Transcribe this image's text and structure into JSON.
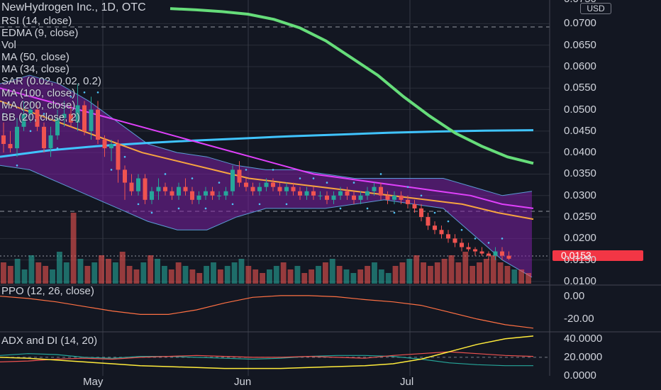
{
  "header": {
    "title": "NewHydrogen Inc., 1D, OTC",
    "currency": "USD"
  },
  "legend_items": [
    "RSI (14, close)",
    "EDMA (9, close)",
    "Vol",
    "MA (50, close)",
    "MA (34, close)",
    "SAR (0.02, 0.02, 0.2)",
    "MA (100, close)",
    "MA (200, close)",
    "BB (20, close, 2)"
  ],
  "price_axis": {
    "ticks": [
      "0.0700",
      "0.0650",
      "0.0600",
      "0.0550",
      "0.0500",
      "0.0450",
      "0.0400",
      "0.0350",
      "0.0300",
      "0.0250",
      "0.0200",
      "0.0150",
      "0.0100"
    ],
    "top_partial": "0.0750"
  },
  "last_price": "0.0153",
  "ppo_panel": {
    "title": "PPO (12, 26, close)",
    "ticks": [
      "0.00",
      "-20.00"
    ]
  },
  "adx_panel": {
    "title": "ADX and DI (14, 20)",
    "ticks": [
      "40.0000",
      "20.0000",
      "0.0000"
    ]
  },
  "time_axis": {
    "labels": [
      "May",
      "Jun",
      "Jul"
    ]
  },
  "colors": {
    "background": "#131722",
    "up": "#26a69a",
    "down": "#ef5350",
    "bb_fill": "#7b1fa2",
    "ma50": "#f7a440",
    "ma34": "#ff6f3c",
    "ma100": "#e040fb",
    "ma200": "#40c4ff",
    "rsi": "#9c27b0",
    "ema_top": "#66dd7a",
    "sar": "#4fc3f7"
  },
  "chart_data": {
    "type": "candlestick",
    "price_range": [
      0.0095,
      0.0755
    ],
    "days_approx": 85,
    "candles": [
      [
        0.044,
        0.047,
        0.04,
        0.042
      ],
      [
        0.042,
        0.045,
        0.04,
        0.041
      ],
      [
        0.041,
        0.048,
        0.039,
        0.046
      ],
      [
        0.046,
        0.052,
        0.045,
        0.049
      ],
      [
        0.049,
        0.052,
        0.047,
        0.05
      ],
      [
        0.05,
        0.051,
        0.045,
        0.046
      ],
      [
        0.046,
        0.047,
        0.04,
        0.041
      ],
      [
        0.041,
        0.046,
        0.039,
        0.044
      ],
      [
        0.044,
        0.05,
        0.043,
        0.048
      ],
      [
        0.048,
        0.052,
        0.046,
        0.049
      ],
      [
        0.049,
        0.051,
        0.046,
        0.047
      ],
      [
        0.047,
        0.056,
        0.045,
        0.051
      ],
      [
        0.051,
        0.052,
        0.044,
        0.045
      ],
      [
        0.045,
        0.053,
        0.043,
        0.05
      ],
      [
        0.05,
        0.052,
        0.042,
        0.043
      ],
      [
        0.043,
        0.044,
        0.039,
        0.041
      ],
      [
        0.041,
        0.043,
        0.038,
        0.042
      ],
      [
        0.042,
        0.043,
        0.033,
        0.036
      ],
      [
        0.036,
        0.037,
        0.029,
        0.033
      ],
      [
        0.033,
        0.035,
        0.03,
        0.031
      ],
      [
        0.031,
        0.035,
        0.03,
        0.034
      ],
      [
        0.034,
        0.035,
        0.028,
        0.029
      ],
      [
        0.029,
        0.032,
        0.028,
        0.031
      ],
      [
        0.031,
        0.034,
        0.029,
        0.032
      ],
      [
        0.032,
        0.033,
        0.03,
        0.031
      ],
      [
        0.031,
        0.032,
        0.029,
        0.03
      ],
      [
        0.03,
        0.033,
        0.029,
        0.032
      ],
      [
        0.032,
        0.034,
        0.03,
        0.031
      ],
      [
        0.031,
        0.032,
        0.028,
        0.029
      ],
      [
        0.029,
        0.031,
        0.028,
        0.03
      ],
      [
        0.03,
        0.032,
        0.029,
        0.031
      ],
      [
        0.031,
        0.032,
        0.029,
        0.03
      ],
      [
        0.03,
        0.031,
        0.029,
        0.03
      ],
      [
        0.03,
        0.032,
        0.029,
        0.031
      ],
      [
        0.031,
        0.037,
        0.03,
        0.036
      ],
      [
        0.036,
        0.038,
        0.032,
        0.033
      ],
      [
        0.033,
        0.034,
        0.031,
        0.032
      ],
      [
        0.032,
        0.033,
        0.03,
        0.031
      ],
      [
        0.031,
        0.033,
        0.03,
        0.032
      ],
      [
        0.032,
        0.034,
        0.031,
        0.033
      ],
      [
        0.033,
        0.034,
        0.031,
        0.032
      ],
      [
        0.032,
        0.033,
        0.03,
        0.031
      ],
      [
        0.031,
        0.033,
        0.03,
        0.032
      ],
      [
        0.032,
        0.033,
        0.03,
        0.031
      ],
      [
        0.031,
        0.032,
        0.029,
        0.03
      ],
      [
        0.03,
        0.032,
        0.029,
        0.031
      ],
      [
        0.031,
        0.032,
        0.029,
        0.03
      ],
      [
        0.03,
        0.031,
        0.029,
        0.03
      ],
      [
        0.03,
        0.031,
        0.028,
        0.029
      ],
      [
        0.029,
        0.031,
        0.028,
        0.03
      ],
      [
        0.03,
        0.032,
        0.029,
        0.031
      ],
      [
        0.031,
        0.032,
        0.029,
        0.03
      ],
      [
        0.03,
        0.031,
        0.028,
        0.029
      ],
      [
        0.029,
        0.031,
        0.028,
        0.03
      ],
      [
        0.03,
        0.032,
        0.029,
        0.031
      ],
      [
        0.031,
        0.033,
        0.03,
        0.032
      ],
      [
        0.032,
        0.033,
        0.029,
        0.03
      ],
      [
        0.03,
        0.031,
        0.028,
        0.029
      ],
      [
        0.029,
        0.031,
        0.028,
        0.03
      ],
      [
        0.03,
        0.031,
        0.028,
        0.029
      ],
      [
        0.029,
        0.03,
        0.027,
        0.028
      ],
      [
        0.028,
        0.029,
        0.026,
        0.027
      ],
      [
        0.027,
        0.028,
        0.024,
        0.025
      ],
      [
        0.025,
        0.026,
        0.022,
        0.023
      ],
      [
        0.023,
        0.024,
        0.021,
        0.022
      ],
      [
        0.022,
        0.023,
        0.02,
        0.021
      ],
      [
        0.021,
        0.022,
        0.019,
        0.02
      ],
      [
        0.02,
        0.021,
        0.018,
        0.019
      ],
      [
        0.019,
        0.02,
        0.017,
        0.018
      ],
      [
        0.018,
        0.019,
        0.017,
        0.0175
      ],
      [
        0.0175,
        0.018,
        0.016,
        0.017
      ],
      [
        0.017,
        0.018,
        0.016,
        0.0165
      ],
      [
        0.0165,
        0.017,
        0.015,
        0.016
      ],
      [
        0.016,
        0.018,
        0.015,
        0.017
      ],
      [
        0.017,
        0.018,
        0.015,
        0.016
      ],
      [
        0.016,
        0.017,
        0.015,
        0.0153
      ]
    ],
    "volume": [
      0.3,
      0.25,
      0.35,
      0.2,
      0.4,
      0.3,
      0.25,
      0.2,
      0.45,
      0.3,
      1.0,
      0.35,
      0.25,
      0.3,
      0.4,
      0.35,
      0.3,
      0.45,
      0.25,
      0.2,
      0.3,
      0.4,
      0.35,
      0.25,
      0.2,
      0.3,
      0.25,
      0.2,
      0.15,
      0.25,
      0.3,
      0.2,
      0.25,
      0.3,
      0.35,
      0.25,
      0.2,
      0.15,
      0.2,
      0.25,
      0.3,
      0.2,
      0.25,
      0.15,
      0.2,
      0.25,
      0.3,
      0.35,
      0.25,
      0.2,
      0.15,
      0.2,
      0.25,
      0.3,
      0.2,
      0.15,
      0.25,
      0.3,
      0.35,
      0.4,
      0.3,
      0.25,
      0.3,
      0.35,
      0.4,
      0.3,
      0.45,
      0.25,
      0.3,
      0.35,
      0.4,
      0.3,
      0.25,
      0.2,
      0.2,
      0.15
    ],
    "ma200": [
      0.039,
      0.0405,
      0.0415,
      0.0422,
      0.0428,
      0.0433,
      0.0438,
      0.0442,
      0.0446,
      0.0449,
      0.0451,
      0.0452
    ],
    "ema_top": [
      0.0735,
      0.0732,
      0.0728,
      0.0722,
      0.071,
      0.069,
      0.066,
      0.062,
      0.058,
      0.053,
      0.0485,
      0.0445,
      0.0415,
      0.039,
      0.0375
    ],
    "ma50": [
      0.052,
      0.049,
      0.046,
      0.043,
      0.04,
      0.038,
      0.036,
      0.034,
      0.033,
      0.032,
      0.031,
      0.03,
      0.029,
      0.028,
      0.026,
      0.0245
    ],
    "ma100": [
      0.055,
      0.053,
      0.051,
      0.049,
      0.047,
      0.045,
      0.043,
      0.041,
      0.039,
      0.037,
      0.035,
      0.034,
      0.033,
      0.032,
      0.031,
      0.03,
      0.028,
      0.027
    ],
    "bb_upper": [
      0.056,
      0.058,
      0.056,
      0.052,
      0.047,
      0.042,
      0.04,
      0.039,
      0.037,
      0.036,
      0.036,
      0.035,
      0.034,
      0.034,
      0.034,
      0.034,
      0.032,
      0.03,
      0.031
    ],
    "bb_lower": [
      0.037,
      0.036,
      0.033,
      0.03,
      0.027,
      0.024,
      0.022,
      0.022,
      0.025,
      0.027,
      0.027,
      0.027,
      0.028,
      0.029,
      0.028,
      0.027,
      0.021,
      0.015,
      0.011
    ],
    "ppo": [
      0.0,
      -2,
      -5,
      -9,
      -13,
      -16,
      -16,
      -12,
      -6,
      -1,
      0.5,
      0.5,
      -0.5,
      -3,
      -5,
      -8,
      -14,
      -20,
      -25,
      -28
    ],
    "ppo_range": [
      -30,
      6
    ],
    "adx": [
      20,
      19,
      17,
      15,
      13,
      11,
      10,
      9,
      8,
      8,
      8,
      9,
      10,
      11,
      13,
      18,
      26,
      34,
      40,
      43
    ],
    "di_plus": [
      22,
      24,
      23,
      20,
      19,
      21,
      21,
      20,
      19,
      18,
      19,
      21,
      22,
      22,
      21,
      18,
      14,
      12,
      11,
      11
    ],
    "di_minus": [
      15,
      16,
      18,
      19,
      18,
      20,
      21,
      22,
      21,
      20,
      20,
      21,
      20,
      19,
      22,
      24,
      26,
      24,
      22,
      21
    ],
    "adx_range": [
      0,
      46
    ]
  }
}
